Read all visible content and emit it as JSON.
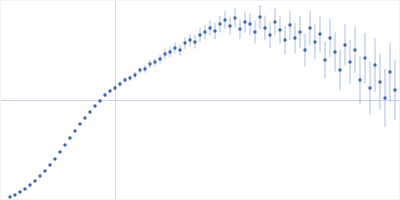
{
  "chart_data": {
    "type": "scatter",
    "x": [
      10,
      15,
      20,
      25,
      30,
      35,
      40,
      45,
      50,
      55,
      60,
      65,
      70,
      75,
      80,
      85,
      90,
      95,
      100,
      105,
      110,
      115,
      120,
      125,
      130,
      135,
      140,
      145,
      150,
      155,
      160,
      165,
      170,
      175,
      180,
      185,
      190,
      195,
      200,
      205,
      210,
      215,
      220,
      225,
      230,
      235,
      240,
      245,
      250,
      255,
      260,
      265,
      270,
      275,
      280,
      285,
      290,
      295,
      300,
      305,
      310,
      315,
      320,
      325,
      330,
      335,
      340,
      345,
      350,
      355,
      360,
      365,
      370,
      375,
      380,
      385,
      390,
      395
    ],
    "values": [
      3,
      5,
      8,
      11,
      15,
      19,
      24,
      29,
      35,
      41,
      48,
      55,
      62,
      69,
      76,
      82,
      88,
      94,
      99,
      105,
      109,
      112,
      116,
      120,
      122,
      125,
      130,
      131,
      136,
      138,
      141,
      146,
      148,
      152,
      150,
      157,
      160,
      158,
      165,
      168,
      172,
      169,
      176,
      180,
      174,
      182,
      171,
      178,
      176,
      168,
      183,
      172,
      165,
      178,
      170,
      160,
      175,
      162,
      168,
      150,
      172,
      158,
      166,
      140,
      162,
      148,
      130,
      155,
      138,
      150,
      120,
      142,
      112,
      135,
      118,
      102,
      128,
      110
    ],
    "errors": [
      0.5,
      0.5,
      0.5,
      0.5,
      0.5,
      0.5,
      0.5,
      0.6,
      0.6,
      0.7,
      0.7,
      0.8,
      0.8,
      0.9,
      1,
      1,
      1.2,
      1.4,
      1.6,
      2,
      2.2,
      2.4,
      2.6,
      2.8,
      3,
      3.2,
      3.4,
      3.6,
      4,
      4.2,
      4.5,
      4.8,
      5,
      5.3,
      5.6,
      6,
      6.3,
      6.6,
      7,
      7.3,
      7.6,
      8,
      8.4,
      8.8,
      9,
      9.5,
      10,
      10.5,
      11,
      11.5,
      12,
      12.5,
      13,
      13.5,
      14,
      14.5,
      15,
      15.5,
      16,
      16.5,
      17,
      17.5,
      18,
      18.5,
      19,
      19.5,
      20,
      21,
      22,
      23,
      24,
      25,
      26,
      27,
      28,
      29,
      30,
      30
    ],
    "color": "#3a66b8",
    "marker": "circle",
    "xlim": [
      0,
      400
    ],
    "ylim": [
      0,
      200
    ],
    "xticks": [
      115
    ],
    "yticks": [
      100
    ],
    "grid": true,
    "tick_labels": false
  }
}
